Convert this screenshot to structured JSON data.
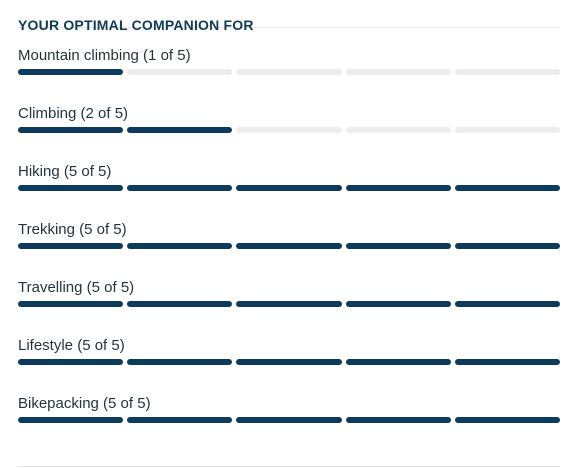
{
  "section": {
    "title": "YOUR OPTIMAL COMPANION FOR"
  },
  "colors": {
    "filled": "#0d3b5c",
    "empty": "#ececec",
    "heading": "#0f3b57",
    "text": "#1f3341"
  },
  "activities": [
    {
      "label": "Mountain climbing (1 of 5)",
      "rating": 1,
      "max": 5
    },
    {
      "label": "Climbing (2 of 5)",
      "rating": 2,
      "max": 5
    },
    {
      "label": "Hiking (5 of 5)",
      "rating": 5,
      "max": 5
    },
    {
      "label": "Trekking (5 of 5)",
      "rating": 5,
      "max": 5
    },
    {
      "label": "Travelling (5 of 5)",
      "rating": 5,
      "max": 5
    },
    {
      "label": "Lifestyle (5 of 5)",
      "rating": 5,
      "max": 5
    },
    {
      "label": "Bikepacking (5 of 5)",
      "rating": 5,
      "max": 5
    }
  ]
}
